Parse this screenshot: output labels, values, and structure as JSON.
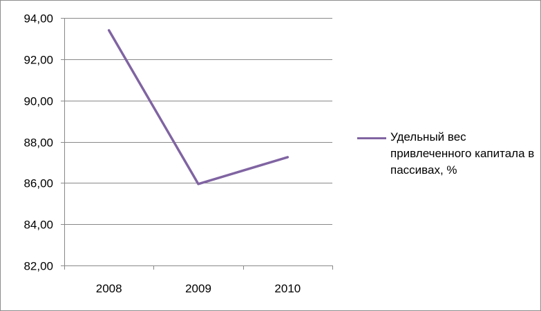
{
  "chart_data": {
    "type": "line",
    "categories": [
      "2008",
      "2009",
      "2010"
    ],
    "series": [
      {
        "name": "Удельный вес привлеченного капитала в пассивах, %",
        "values": [
          93.4,
          85.95,
          87.25
        ],
        "color": "#8064A2"
      }
    ],
    "ylim": [
      82,
      94
    ],
    "yticks": [
      "82,00",
      "84,00",
      "86,00",
      "88,00",
      "90,00",
      "92,00",
      "94,00"
    ],
    "ytick_values": [
      82,
      84,
      86,
      88,
      90,
      92,
      94
    ],
    "grid": true,
    "legend": "right",
    "title": "",
    "xlabel": "",
    "ylabel": ""
  }
}
